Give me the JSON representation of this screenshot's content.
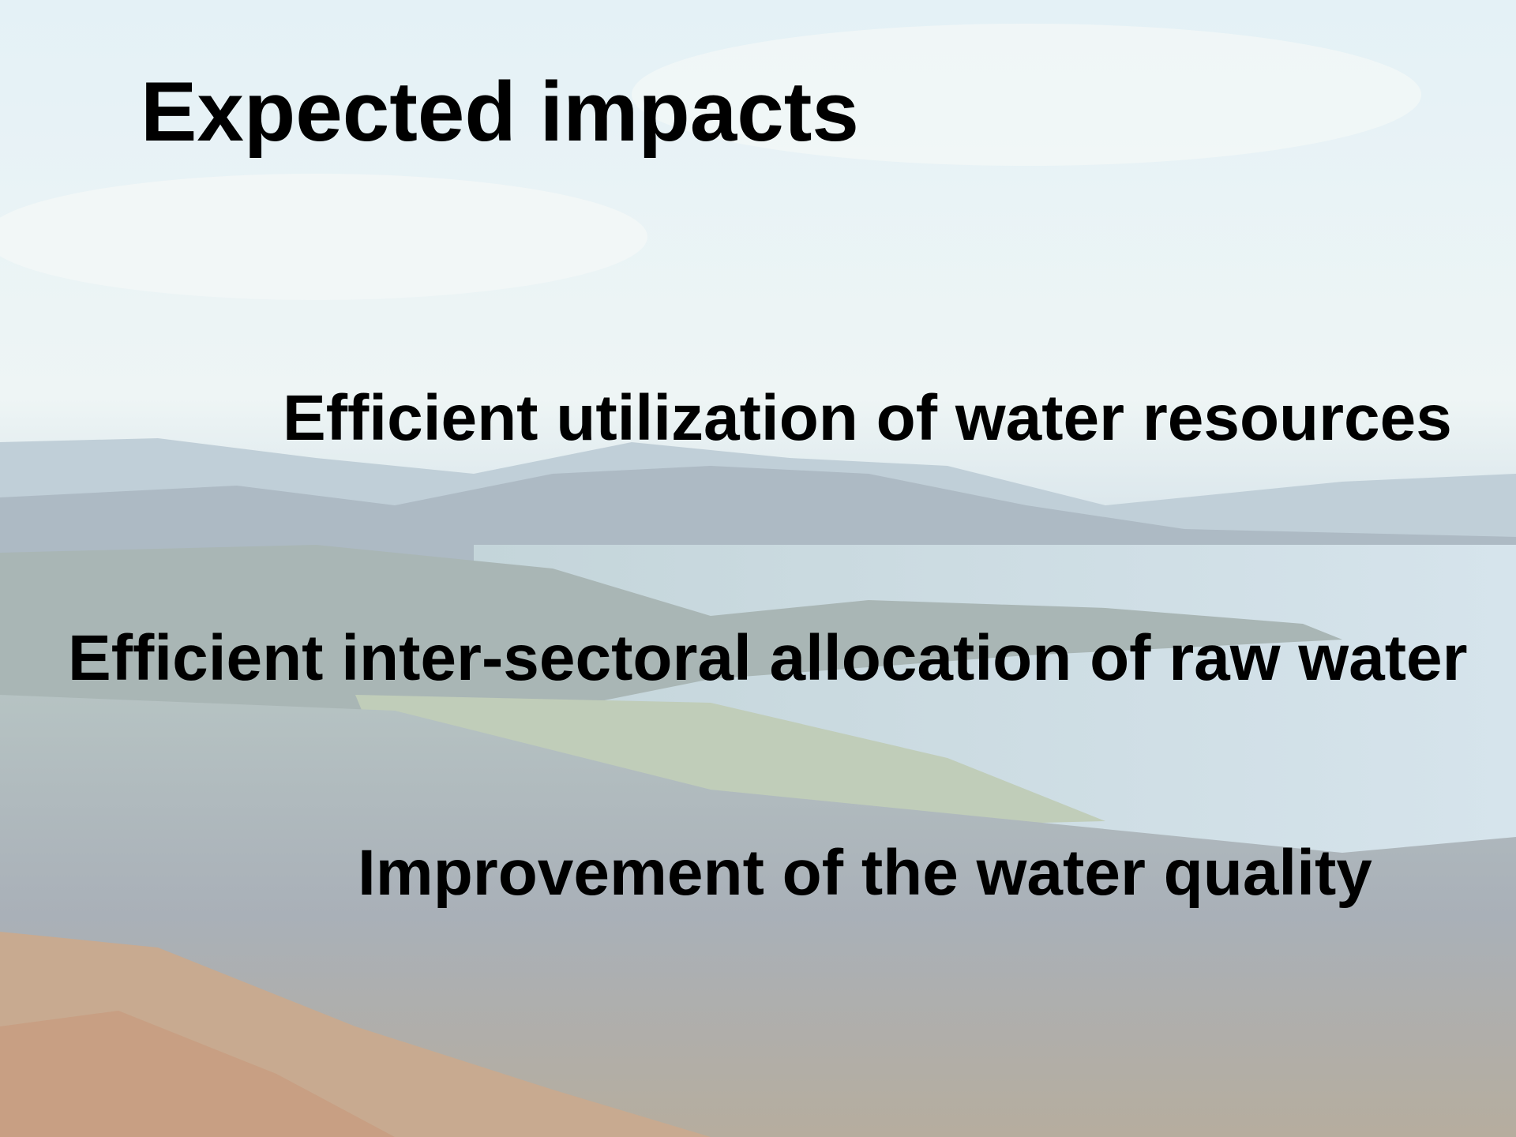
{
  "slide": {
    "title": "Expected impacts",
    "items": [
      "Efficient utilization of water resources",
      "Efficient inter-sectoral allocation of raw water",
      "Improvement of the water quality"
    ]
  }
}
